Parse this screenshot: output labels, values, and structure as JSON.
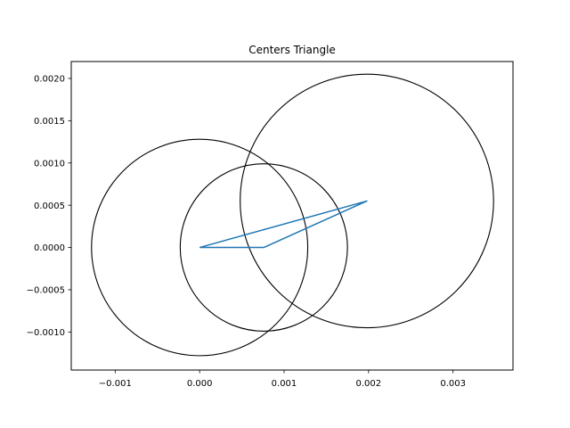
{
  "chart_data": {
    "type": "line",
    "title": "Centers Triangle",
    "xlabel": "",
    "ylabel": "",
    "xlim": [
      -0.00152,
      0.00371
    ],
    "ylim": [
      -0.00145,
      0.0022
    ],
    "grid": false,
    "x_ticks": [
      -0.001,
      0.0,
      0.001,
      0.002,
      0.003
    ],
    "x_tick_labels": [
      "−0.001",
      "0.000",
      "0.001",
      "0.002",
      "0.003"
    ],
    "y_ticks": [
      -0.001,
      -0.0005,
      0.0,
      0.0005,
      0.001,
      0.0015,
      0.002
    ],
    "y_tick_labels": [
      "−0.0010",
      "−0.0005",
      "0.0000",
      "0.0005",
      "0.0010",
      "0.0015",
      "0.0020"
    ],
    "series": [
      {
        "color": "#1f77b4",
        "x": [
          0.0,
          0.00076,
          0.00198,
          0.0
        ],
        "y": [
          0.0,
          0.0,
          0.00055,
          0.0
        ]
      }
    ],
    "circles": [
      {
        "cx": 0.0,
        "cy": 0.0,
        "r": 0.00128,
        "color": "#000000"
      },
      {
        "cx": 0.00076,
        "cy": 0.0,
        "r": 0.00099,
        "color": "#000000"
      },
      {
        "cx": 0.00198,
        "cy": 0.00055,
        "r": 0.0015,
        "color": "#000000"
      }
    ]
  }
}
